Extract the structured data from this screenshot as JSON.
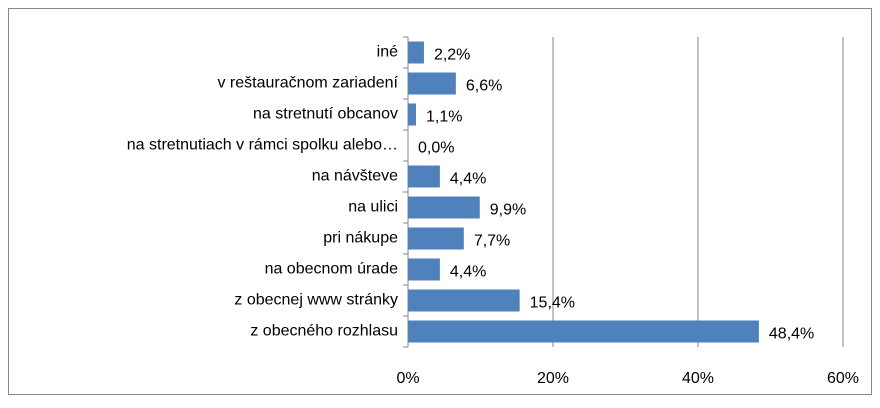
{
  "chart_data": {
    "type": "bar",
    "orientation": "horizontal",
    "categories": [
      "iné",
      "v reštauračnom zariadení",
      "na stretnutí obcanov",
      "na stretnutiach v rámci spolku alebo…",
      "na návšteve",
      "na ulici",
      "pri nákupe",
      "na obecnom úrade",
      "z obecnej www stránky",
      "z obecného rozhlasu"
    ],
    "values": [
      2.2,
      6.6,
      1.1,
      0.0,
      4.4,
      9.9,
      7.7,
      4.4,
      15.4,
      48.4
    ],
    "value_labels": [
      "2,2%",
      "6,6%",
      "1,1%",
      "0,0%",
      "4,4%",
      "9,9%",
      "7,7%",
      "4,4%",
      "15,4%",
      "48,4%"
    ],
    "color": "#4f81bd",
    "xlim": [
      0,
      60
    ],
    "xticks": [
      {
        "value": 0,
        "label": "0%"
      },
      {
        "value": 20,
        "label": "20%"
      },
      {
        "value": 40,
        "label": "40%"
      },
      {
        "value": 60,
        "label": "60%"
      }
    ],
    "grid": true
  }
}
